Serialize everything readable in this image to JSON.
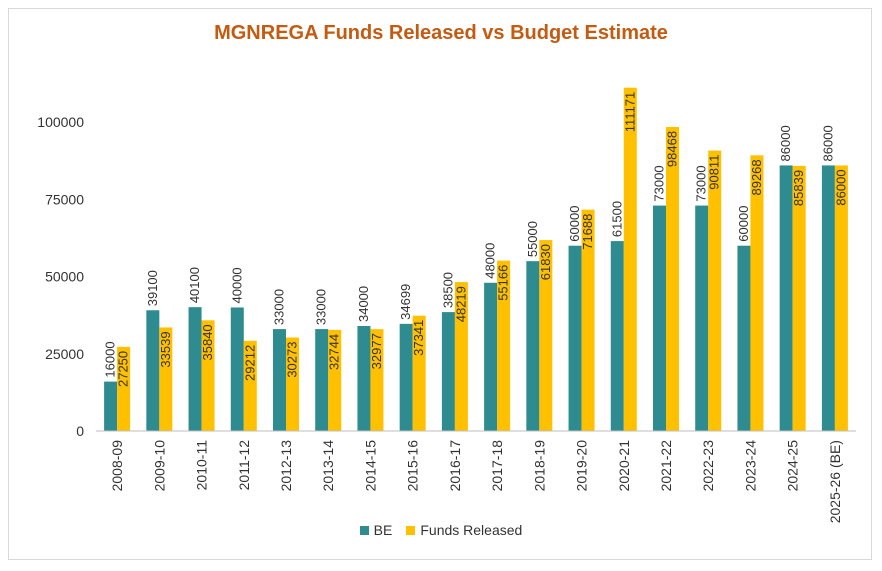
{
  "chart_data": {
    "type": "bar",
    "title": "MGNREGA Funds Released vs Budget Estimate",
    "xlabel": "",
    "ylabel": "",
    "ylim": [
      0,
      125000
    ],
    "yticks": [
      0,
      25000,
      50000,
      75000,
      100000
    ],
    "categories": [
      "2008-09",
      "2009-10",
      "2010-11",
      "2011-12",
      "2012-13",
      "2013-14",
      "2014-15",
      "2015-16",
      "2016-17",
      "2017-18",
      "2018-19",
      "2019-20",
      "2020-21",
      "2021-22",
      "2022-23",
      "2023-24",
      "2024-25",
      "2025-26 (BE)"
    ],
    "series": [
      {
        "name": "BE",
        "color": "#2e8b8f",
        "values": [
          16000,
          39100,
          40100,
          40000,
          33000,
          33000,
          34000,
          34699,
          38500,
          48000,
          55000,
          60000,
          61500,
          73000,
          73000,
          60000,
          86000,
          86000
        ]
      },
      {
        "name": "Funds Released",
        "color": "#ffc000",
        "values": [
          27250,
          33539,
          35840,
          29212,
          30273,
          32744,
          32977,
          37341,
          48219,
          55166,
          61830,
          71688,
          111171,
          98468,
          90811,
          89268,
          85839,
          86000
        ]
      }
    ],
    "legend": "bottom"
  }
}
